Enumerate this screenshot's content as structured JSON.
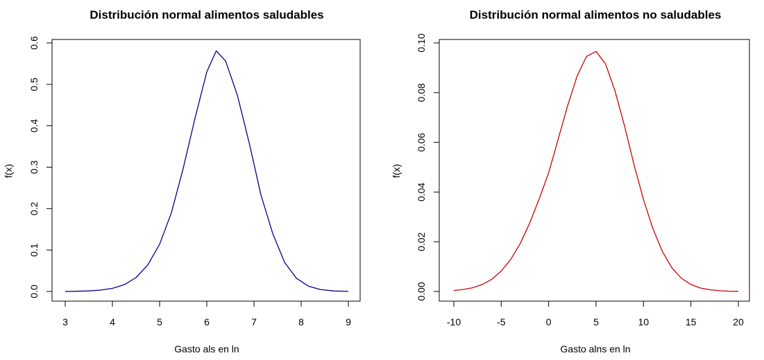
{
  "chart_data": [
    {
      "type": "line",
      "title": "Distribución normal alimentos saludables",
      "xlabel": "Gasto als en ln",
      "ylabel": "f(x)",
      "xlim": [
        3,
        9
      ],
      "ylim": [
        0,
        0.6
      ],
      "x_ticks": [
        "3",
        "4",
        "5",
        "6",
        "7",
        "8",
        "9"
      ],
      "y_ticks": [
        "0.0",
        "0.1",
        "0.2",
        "0.3",
        "0.4",
        "0.5",
        "0.6"
      ],
      "grid": false,
      "series": [
        {
          "color": "#00008b",
          "x": [
            3.0,
            3.25,
            3.5,
            3.75,
            4.0,
            4.25,
            4.5,
            4.75,
            5.0,
            5.25,
            5.5,
            5.75,
            6.0,
            6.2,
            6.4,
            6.65,
            6.9,
            7.15,
            7.4,
            7.65,
            7.9,
            8.15,
            8.4,
            8.7,
            9.0
          ],
          "y": [
            0.0,
            0.0005,
            0.0013,
            0.0033,
            0.0075,
            0.0162,
            0.0335,
            0.064,
            0.114,
            0.19,
            0.297,
            0.418,
            0.53,
            0.581,
            0.556,
            0.473,
            0.358,
            0.232,
            0.139,
            0.07,
            0.032,
            0.013,
            0.0048,
            0.0012,
            0.0002
          ]
        }
      ]
    },
    {
      "type": "line",
      "title": "Distribución normal alimentos no saludables",
      "xlabel": "Gasto alns en ln",
      "ylabel": "f(x)",
      "xlim": [
        -10,
        20
      ],
      "ylim": [
        0,
        0.1
      ],
      "x_ticks": [
        "-10",
        "-5",
        "0",
        "5",
        "10",
        "15",
        "20"
      ],
      "y_ticks": [
        "0.00",
        "0.02",
        "0.04",
        "0.06",
        "0.08",
        "0.10"
      ],
      "grid": false,
      "series": [
        {
          "color": "#cc0000",
          "x": [
            -10,
            -9,
            -8,
            -7,
            -6,
            -5,
            -4,
            -3,
            -2,
            -1,
            0,
            1,
            2,
            3,
            4,
            5,
            6,
            7,
            8,
            9,
            10,
            11,
            12,
            13,
            14,
            15,
            16,
            17,
            18,
            19,
            20
          ],
          "y": [
            0.0004,
            0.0008,
            0.0015,
            0.0028,
            0.0049,
            0.0082,
            0.0129,
            0.0193,
            0.0275,
            0.0372,
            0.0478,
            0.0612,
            0.0747,
            0.0867,
            0.0946,
            0.0966,
            0.0915,
            0.0807,
            0.0666,
            0.051,
            0.037,
            0.0252,
            0.016,
            0.0095,
            0.0053,
            0.0028,
            0.0014,
            0.0007,
            0.0003,
            0.0001,
            5e-05
          ]
        }
      ]
    }
  ]
}
